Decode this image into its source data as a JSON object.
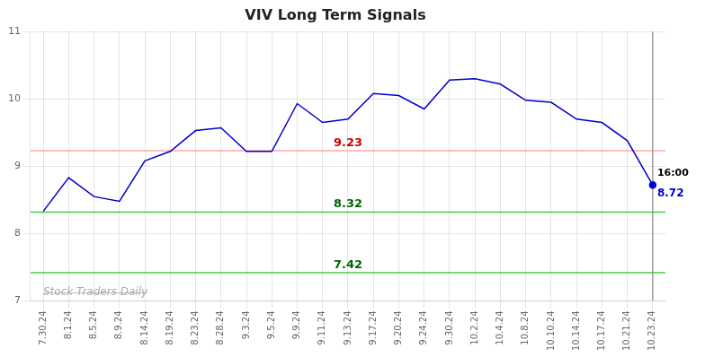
{
  "chart_data": {
    "type": "line",
    "title": "VIV Long Term Signals",
    "categories": [
      "7.30.24",
      "8.1.24",
      "8.5.24",
      "8.9.24",
      "8.14.24",
      "8.19.24",
      "8.23.24",
      "8.28.24",
      "9.3.24",
      "9.5.24",
      "9.9.24",
      "9.11.24",
      "9.13.24",
      "9.17.24",
      "9.20.24",
      "9.24.24",
      "9.30.24",
      "10.2.24",
      "10.4.24",
      "10.8.24",
      "10.10.24",
      "10.14.24",
      "10.17.24",
      "10.21.24",
      "10.23.24"
    ],
    "values": [
      8.33,
      8.83,
      8.55,
      8.48,
      9.08,
      9.22,
      9.53,
      9.57,
      9.22,
      9.22,
      9.93,
      9.65,
      9.7,
      10.08,
      10.05,
      9.85,
      10.28,
      10.3,
      10.22,
      9.98,
      9.95,
      9.7,
      9.65,
      9.38,
      8.72
    ],
    "color": "#0000cc",
    "ylim": [
      7,
      11
    ],
    "yticks": [
      7,
      8,
      9,
      10,
      11
    ],
    "grid": true,
    "hlines": [
      {
        "value": 9.23,
        "label": "9.23",
        "color": "#ffaaaa",
        "label_color": "#cc0000"
      },
      {
        "value": 8.32,
        "label": "8.32",
        "color": "#44cc44",
        "label_color": "#006600"
      },
      {
        "value": 7.42,
        "label": "7.42",
        "color": "#44cc44",
        "label_color": "#006600"
      }
    ],
    "vline": {
      "category": "10.23.24",
      "color": "#888888"
    },
    "annotations": [
      {
        "text": "16:00",
        "color": "#000000"
      },
      {
        "text": "8.72",
        "value": 8.72,
        "color": "#0000cc"
      }
    ],
    "watermark": {
      "text": "Stock Traders Daily",
      "color": "#aaaaaa"
    }
  }
}
